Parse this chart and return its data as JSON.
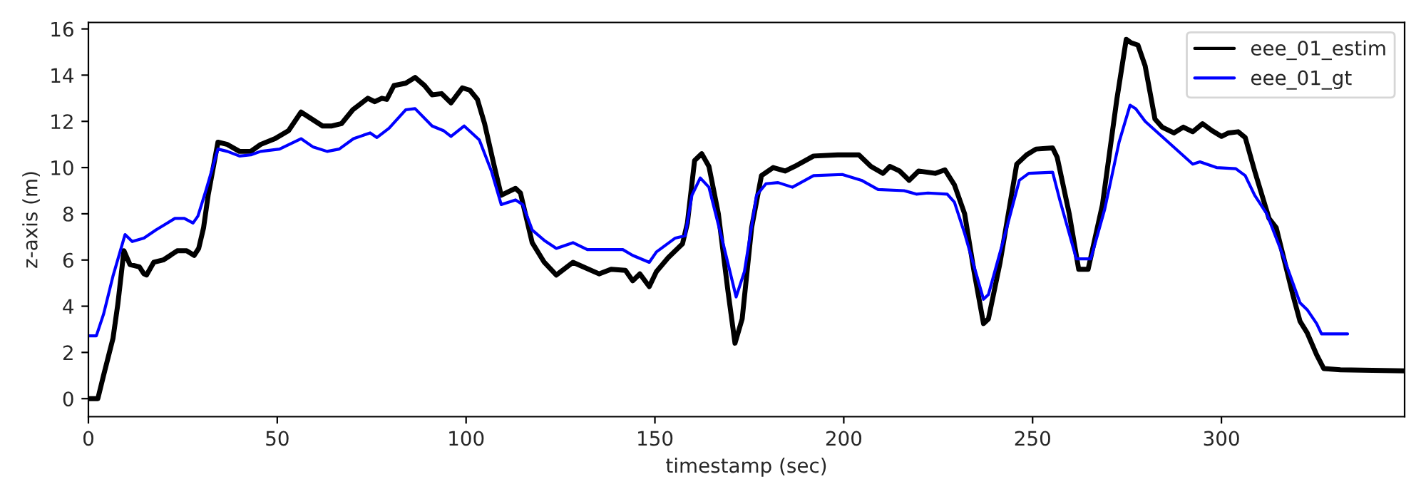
{
  "chart_data": {
    "type": "line",
    "xlabel": "timestamp (sec)",
    "ylabel": "z-axis (m)",
    "xlim": [
      0,
      348.5
    ],
    "ylim": [
      -0.78,
      16.28
    ],
    "xticks": [
      0,
      50,
      100,
      150,
      200,
      250,
      300
    ],
    "yticks": [
      0,
      2,
      4,
      6,
      8,
      10,
      12,
      14,
      16
    ],
    "grid": false,
    "legend": "top right",
    "line_style": "solid",
    "marker": "none",
    "series": [
      {
        "name": "eee_01_estim",
        "color": "#000000",
        "x": [
          0,
          2.5,
          4,
          6.5,
          7.8,
          9.4,
          11,
          13.5,
          14.7,
          15.4,
          17.3,
          19.8,
          21.7,
          23.5,
          26,
          28,
          29.2,
          30.5,
          31.7,
          34.3,
          36.8,
          40,
          43,
          45.6,
          49.4,
          53,
          56.3,
          58.2,
          62,
          64.5,
          67,
          70,
          74,
          75.8,
          77.7,
          79,
          80.9,
          84,
          86.5,
          89,
          91,
          93.5,
          96,
          99,
          101,
          103,
          104.9,
          107.4,
          109.3,
          113.1,
          114.4,
          117.5,
          120.7,
          123.9,
          128.3,
          135.2,
          138.4,
          142.2,
          144.1,
          146,
          148.5,
          150.4,
          153.5,
          157.3,
          158.6,
          160.5,
          162.4,
          164.3,
          166.8,
          169.3,
          171.2,
          173.1,
          175.6,
          178.2,
          181.3,
          184.5,
          187,
          192,
          198.4,
          204,
          207.2,
          210.4,
          212.2,
          214.8,
          217.3,
          219.8,
          224.2,
          226.8,
          229.3,
          232,
          234.5,
          237,
          238.3,
          241.4,
          245.8,
          248.4,
          250.9,
          255.3,
          256.5,
          259.7,
          262.2,
          264.7,
          268.5,
          272.3,
          274.8,
          276.1,
          277.9,
          279.8,
          282.4,
          284.3,
          287.4,
          289.9,
          292.4,
          295,
          297.5,
          300,
          301.9,
          304.4,
          306.3,
          308.8,
          312.6,
          314.5,
          316.4,
          318.9,
          320.8,
          322.7,
          325.2,
          327.1,
          331.5,
          348.5
        ],
        "values": [
          0,
          0,
          1.0,
          2.6,
          4.1,
          6.4,
          5.8,
          5.7,
          5.4,
          5.35,
          5.9,
          6.0,
          6.2,
          6.4,
          6.4,
          6.2,
          6.5,
          7.4,
          8.8,
          11.1,
          11.0,
          10.7,
          10.7,
          11.0,
          11.25,
          11.6,
          12.4,
          12.2,
          11.8,
          11.8,
          11.9,
          12.5,
          13.0,
          12.85,
          13.0,
          12.95,
          13.55,
          13.65,
          13.9,
          13.55,
          13.15,
          13.2,
          12.8,
          13.45,
          13.35,
          12.95,
          11.9,
          10.1,
          8.8,
          9.1,
          8.9,
          6.75,
          5.9,
          5.35,
          5.9,
          5.4,
          5.6,
          5.55,
          5.1,
          5.4,
          4.85,
          5.5,
          6.1,
          6.7,
          7.6,
          10.3,
          10.6,
          10.05,
          8.0,
          4.7,
          2.4,
          3.45,
          7.4,
          9.65,
          10.0,
          9.85,
          10.05,
          10.5,
          10.55,
          10.55,
          10.05,
          9.75,
          10.05,
          9.85,
          9.45,
          9.85,
          9.75,
          9.9,
          9.25,
          8.0,
          5.5,
          3.25,
          3.45,
          5.9,
          10.15,
          10.55,
          10.8,
          10.85,
          10.45,
          8.0,
          5.6,
          5.6,
          8.4,
          12.95,
          15.55,
          15.4,
          15.3,
          14.4,
          12.1,
          11.75,
          11.5,
          11.75,
          11.55,
          11.9,
          11.6,
          11.35,
          11.5,
          11.55,
          11.3,
          9.85,
          7.8,
          7.4,
          6.15,
          4.5,
          3.35,
          2.85,
          1.9,
          1.3,
          1.25,
          1.2
        ]
      },
      {
        "name": "eee_01_gt",
        "color": "#0000ff",
        "x": [
          0,
          2.1,
          4,
          6.5,
          9.7,
          11.6,
          14.7,
          17.9,
          20.4,
          22.9,
          25.4,
          27.7,
          29,
          31.1,
          34.3,
          36.8,
          40,
          43,
          45.6,
          50.6,
          56.3,
          59.4,
          63.2,
          66.4,
          70.2,
          74.6,
          76.4,
          79.6,
          84,
          86.5,
          91,
          94,
          96,
          99.5,
          103.5,
          106.7,
          109.3,
          113.1,
          115,
          117.5,
          120.7,
          123.9,
          128.3,
          132.1,
          141.5,
          144.1,
          148.5,
          150.4,
          155.4,
          158,
          159.8,
          162,
          164.3,
          168,
          171.5,
          173.7,
          176.9,
          179.4,
          182.6,
          186.4,
          192,
          199.6,
          204.7,
          209.1,
          216,
          219.2,
          222.3,
          227.4,
          229.3,
          232,
          237,
          238.3,
          242.1,
          246.5,
          249,
          255.3,
          257.2,
          261.6,
          265.4,
          269.1,
          272.9,
          275.8,
          277.3,
          279.8,
          292.4,
          294.3,
          298.7,
          303.8,
          306.3,
          308.8,
          312,
          316.4,
          320.8,
          322.7,
          325.2,
          326.5,
          333.4
        ],
        "values": [
          2.72,
          2.72,
          3.65,
          5.3,
          7.1,
          6.8,
          6.95,
          7.3,
          7.55,
          7.8,
          7.8,
          7.6,
          7.9,
          9.0,
          10.8,
          10.7,
          10.5,
          10.55,
          10.7,
          10.8,
          11.25,
          10.9,
          10.7,
          10.8,
          11.25,
          11.5,
          11.3,
          11.7,
          12.5,
          12.55,
          11.8,
          11.6,
          11.35,
          11.8,
          11.2,
          9.85,
          8.4,
          8.6,
          8.4,
          7.3,
          6.85,
          6.5,
          6.75,
          6.45,
          6.45,
          6.2,
          5.9,
          6.35,
          6.95,
          7.05,
          8.8,
          9.55,
          9.15,
          6.75,
          4.4,
          5.5,
          8.8,
          9.3,
          9.35,
          9.15,
          9.65,
          9.7,
          9.45,
          9.05,
          9.0,
          8.85,
          8.9,
          8.85,
          8.5,
          7.15,
          4.3,
          4.5,
          6.75,
          9.45,
          9.75,
          9.8,
          8.6,
          6.05,
          6.05,
          8.2,
          11.1,
          12.7,
          12.55,
          12.0,
          10.15,
          10.25,
          10.0,
          9.95,
          9.65,
          8.8,
          8.0,
          6.15,
          4.15,
          3.85,
          3.25,
          2.8,
          2.8
        ]
      }
    ]
  }
}
